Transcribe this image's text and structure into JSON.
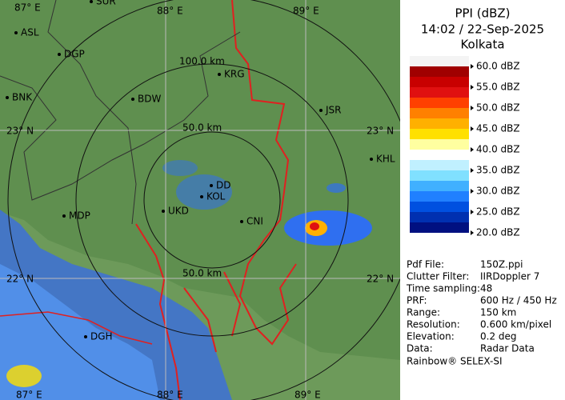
{
  "header": {
    "title": "PPI (dBZ)",
    "time": "14:02 / 22-Sep-2025",
    "site": "Kolkata"
  },
  "legend": {
    "labels": [
      "60.0 dBZ",
      "55.0 dBZ",
      "50.0 dBZ",
      "45.0 dBZ",
      "40.0 dBZ",
      "35.0 dBZ",
      "30.0 dBZ",
      "25.0 dBZ",
      "20.0 dBZ"
    ],
    "colors": [
      "#a00000",
      "#c80000",
      "#e01010",
      "#ff4000",
      "#ff8000",
      "#ffb000",
      "#ffe000",
      "#ffffa0",
      "#ffffff",
      "#c0f0ff",
      "#80e0ff",
      "#40b0ff",
      "#2080ff",
      "#0050e0",
      "#0030b0",
      "#001080"
    ]
  },
  "info": {
    "rows": [
      [
        "Pdf File:",
        "150Z.ppi"
      ],
      [
        "Clutter Filter:",
        "IIRDoppler 7"
      ],
      [
        "Time sampling:",
        "48"
      ],
      [
        "PRF:",
        "600 Hz / 450 Hz"
      ],
      [
        "Range:",
        "150 km"
      ],
      [
        "Resolution:",
        "0.600 km/pixel"
      ],
      [
        "Elevation:",
        "0.2 deg"
      ],
      [
        "Data:",
        "Radar Data"
      ]
    ],
    "footer": "Rainbow® SELEX-SI"
  },
  "map": {
    "places": [
      "SUR",
      "ASL",
      "DGP",
      "BNK",
      "BDW",
      "KRG",
      "JSR",
      "KHL",
      "MDP",
      "DD",
      "KOL",
      "UKD",
      "CNI",
      "DGH"
    ],
    "grid_labels": [
      "87° E",
      "88° E",
      "89° E",
      "23° N",
      "23° N",
      "22° N",
      "22° N",
      "87° E",
      "88° E",
      "89° E"
    ],
    "range_labels": [
      "100.0 km",
      "50.0 km",
      "50.0 km"
    ]
  }
}
